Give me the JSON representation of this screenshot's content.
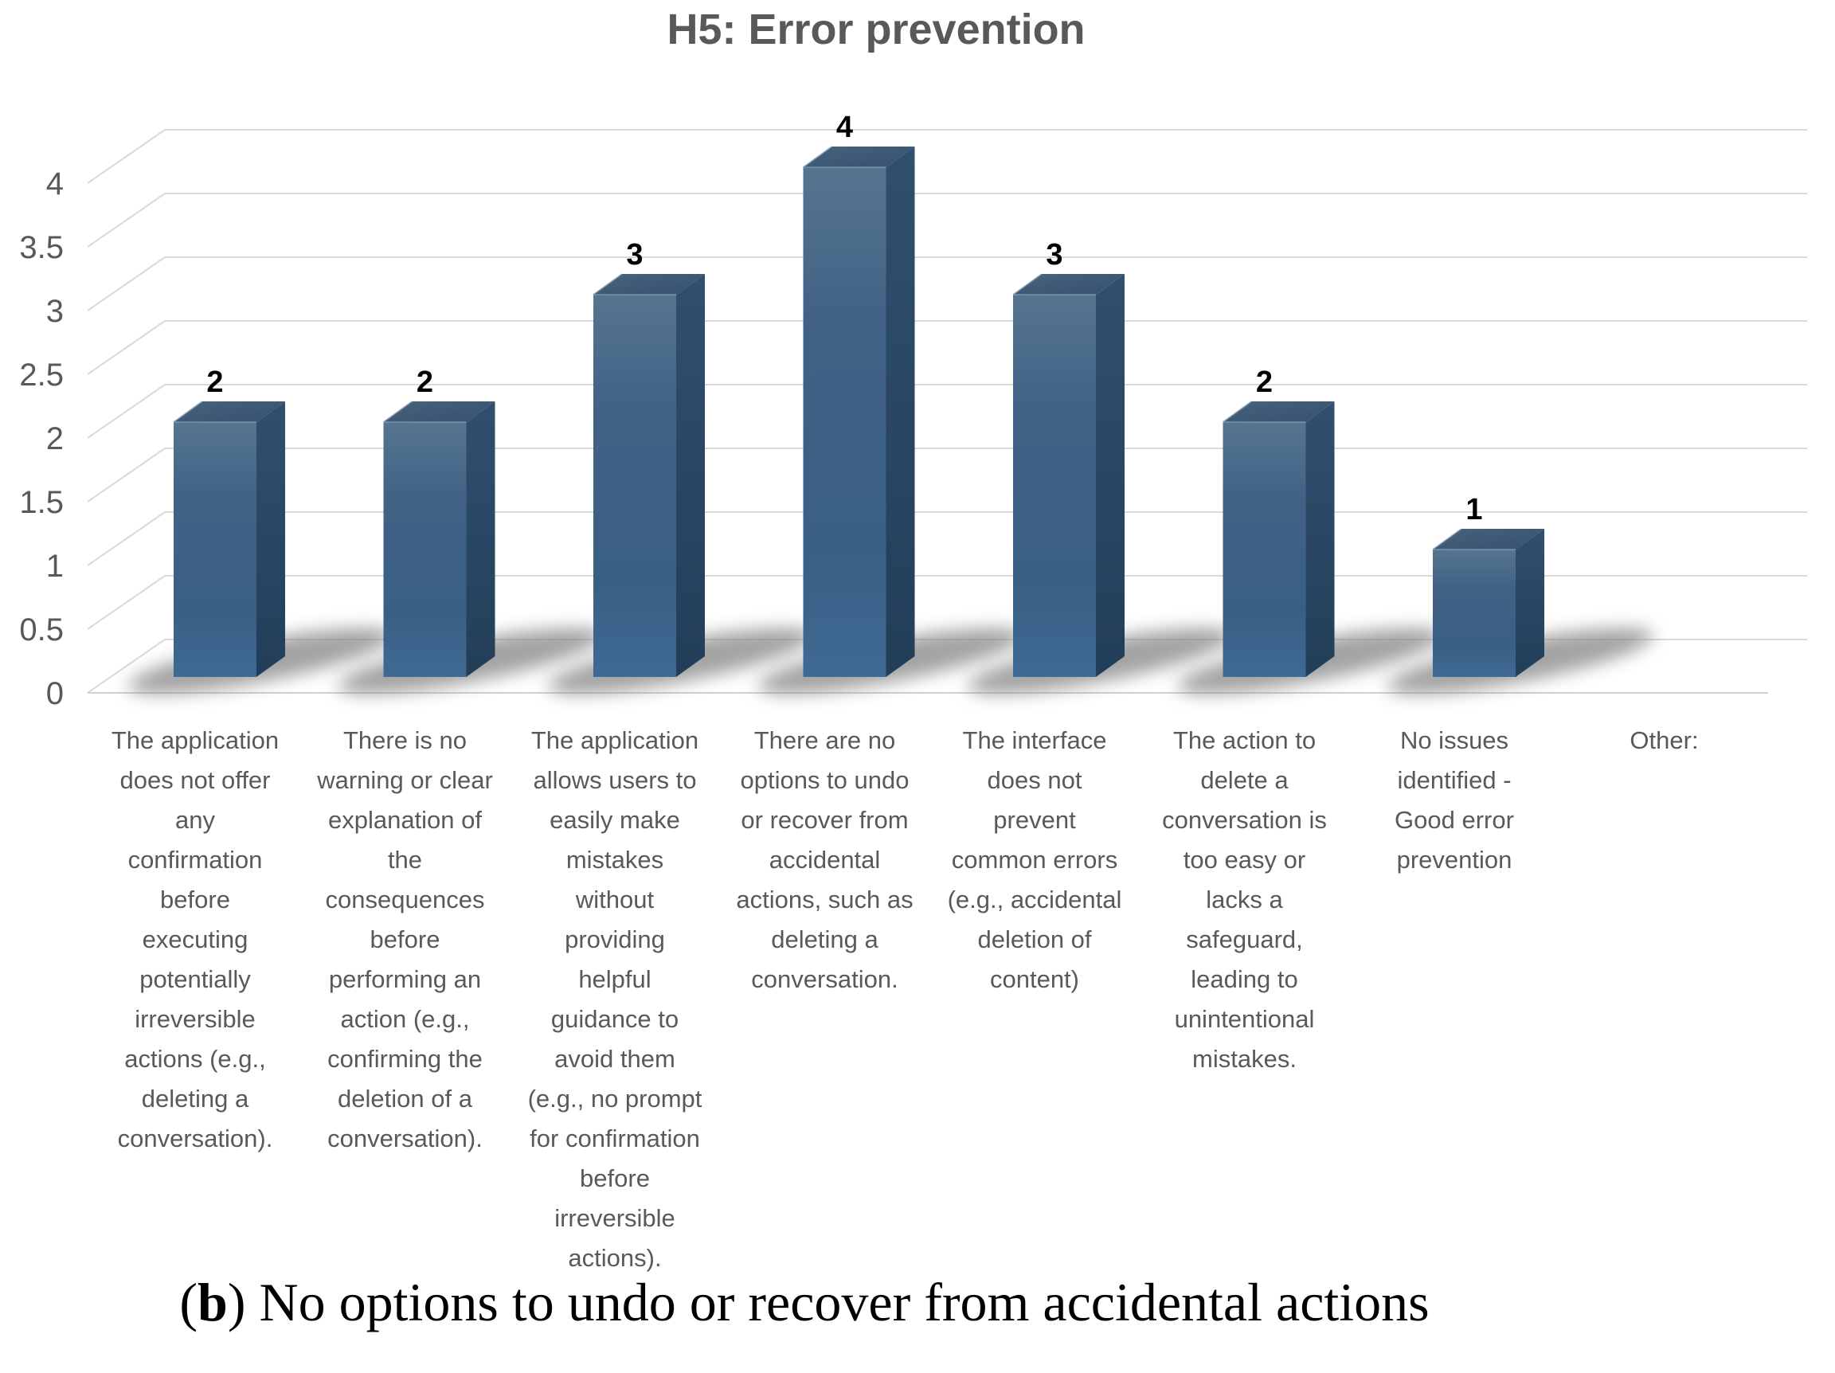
{
  "chart_data": {
    "type": "bar",
    "variant": "3d-column",
    "title": "H5: Error prevention",
    "categories": [
      "The application\ndoes not offer\nany\nconfirmation\nbefore\nexecuting\npotentially\nirreversible\nactions (e.g.,\ndeleting a\nconversation).",
      "There is no\nwarning or clear\nexplanation of\nthe\nconsequences\nbefore\nperforming an\naction (e.g.,\nconfirming the\ndeletion of a\nconversation).",
      "The application\nallows users to\neasily make\nmistakes\nwithout\nproviding\nhelpful\nguidance to\navoid them\n(e.g., no prompt\nfor confirmation\nbefore\nirreversible\nactions).",
      "There are no\noptions to undo\nor recover from\naccidental\nactions, such as\ndeleting a\nconversation.",
      "The interface\ndoes not\nprevent\ncommon errors\n(e.g., accidental\ndeletion of\ncontent)",
      "The action to\ndelete a\nconversation is\ntoo easy or\nlacks a\nsafeguard,\nleading to\nunintentional\nmistakes.",
      "No issues\nidentified -\nGood error\nprevention",
      "Other:"
    ],
    "values": [
      2,
      2,
      3,
      4,
      3,
      2,
      1,
      0
    ],
    "data_labels": [
      "2",
      "2",
      "3",
      "4",
      "3",
      "2",
      "1",
      ""
    ],
    "y_ticks": [
      0,
      0.5,
      1,
      1.5,
      2,
      2.5,
      3,
      3.5,
      4
    ],
    "ylim": [
      0,
      4
    ],
    "xlabel": "",
    "ylabel": "",
    "grid": true,
    "legend": "none",
    "colors": {
      "bar_front_top": "#557590",
      "bar_front_mid": "#416285",
      "bar_front_low": "#3a5f85",
      "bar_front_bottom": "#3f6a93",
      "bar_top_light": "#4a637e",
      "bar_top_dark": "#33506d",
      "bar_side_top": "#30506e",
      "bar_side_bottom": "#223e59",
      "edge_highlight": "#7f98ac",
      "gridline": "#d9d9d9",
      "axis_line": "#d0d0d0",
      "axis_text": "#595959",
      "data_label": "#000000",
      "title_text": "#595959",
      "shadow": "#8c8c8c"
    }
  },
  "caption": {
    "open": "(",
    "label": "b",
    "close": ")",
    "text": " No options to undo or recover from accidental actions"
  }
}
